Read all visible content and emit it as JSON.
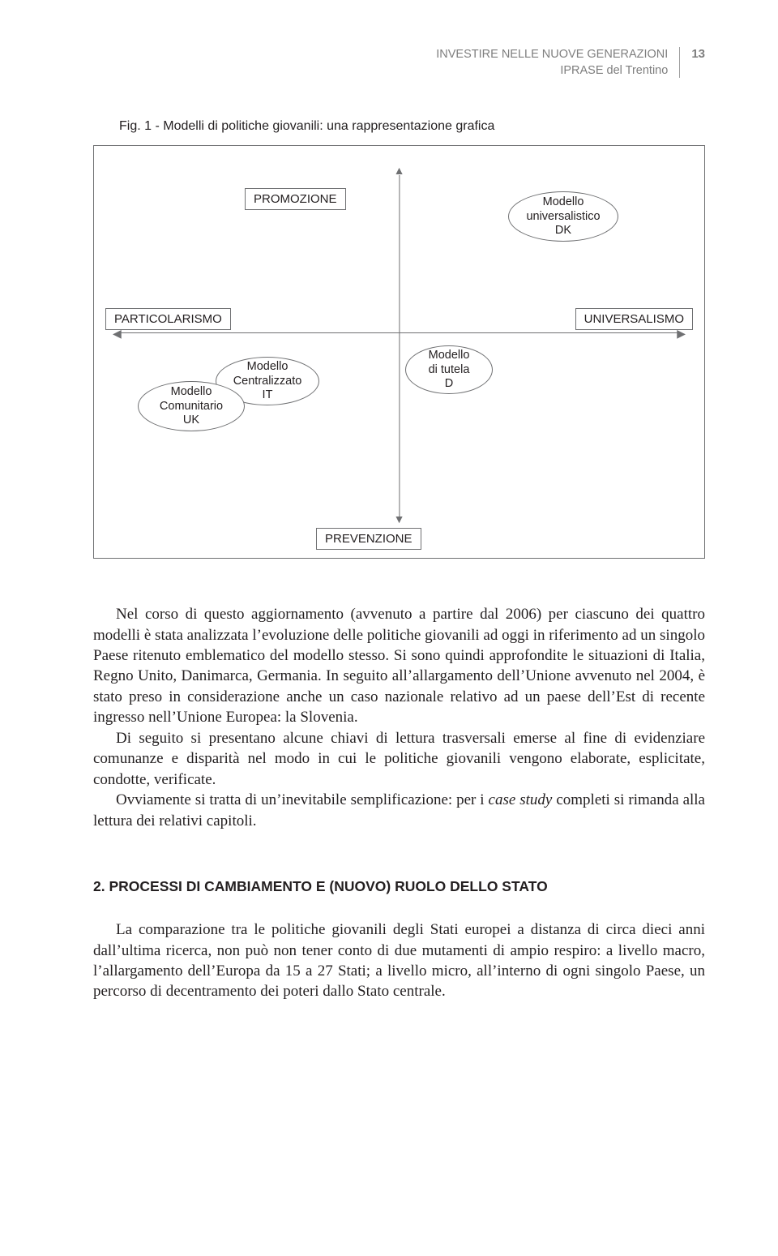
{
  "header": {
    "line1": "INVESTIRE NELLE NUOVE GENERAZIONI",
    "line2": "IPRASE del Trentino",
    "page_number": "13"
  },
  "figure": {
    "caption": "Fig. 1 - Modelli di politiche giovanili: una rappresentazione grafica",
    "axes": {
      "top": "PROMOZIONE",
      "bottom": "PREVENZIONE",
      "left": "PARTICOLARISMO",
      "right": "UNIVERSALISMO"
    },
    "nodes": {
      "dk": {
        "l1": "Modello",
        "l2": "universalistico",
        "l3": "DK"
      },
      "d": {
        "l1": "Modello",
        "l2": "di tutela",
        "l3": "D"
      },
      "it": {
        "l1": "Modello",
        "l2": "Centralizzato",
        "l3": "IT"
      },
      "uk": {
        "l1": "Modello",
        "l2": "Comunitario",
        "l3": "UK"
      }
    },
    "style": {
      "border_color": "#6f7072",
      "axis_color": "#6f7072",
      "node_border_color": "#6f7072",
      "background": "#ffffff",
      "label_font_family": "Myriad Pro, Segoe UI, Arial, sans-serif",
      "label_font_size_pt": 11
    }
  },
  "body": {
    "p1a": "Nel corso di questo aggiornamento (avvenuto a partire dal 2006) per ciascuno dei quattro modelli è stata analizzata l’evoluzione delle politiche giovanili ad oggi in riferimento ad un singolo Paese ritenuto emblematico del modello stesso. Si sono quindi approfondite le situazioni di Italia, Regno Unito, Danimarca, Germania. In seguito all’allargamento dell’Unione avvenuto nel 2004, è stato preso in conside­razione anche un caso nazionale relativo ad un paese dell’Est di recente ingresso nell’Unione Europea: la Slovenia.",
    "p2": "Di seguito si presentano alcune chiavi di lettura trasversali emerse al fine di evidenziare comunanze e disparità nel modo in cui le politiche giovanili vengono elaborate, esplicitate, condotte, verificate.",
    "p3a": "Ovviamente si tratta di un’inevitabile semplificazione: per i ",
    "p3b": "case study",
    "p3c": " completi si rimanda alla lettura dei relativi capitoli."
  },
  "section2": {
    "heading": "2. PROCESSI DI CAMBIAMENTO E (NUOVO) RUOLO DELLO STATO",
    "p1": "La comparazione tra le politiche giovanili degli Stati europei a distanza di circa dieci anni dall’ultima ricerca, non può non tener conto di due mutamenti di ampio respiro: a livello macro, l’allargamento dell’Europa da 15 a 27 Stati; a livello micro, all’interno di ogni singolo Paese, un percorso di decentramento dei poteri dallo Sta­to centrale."
  }
}
